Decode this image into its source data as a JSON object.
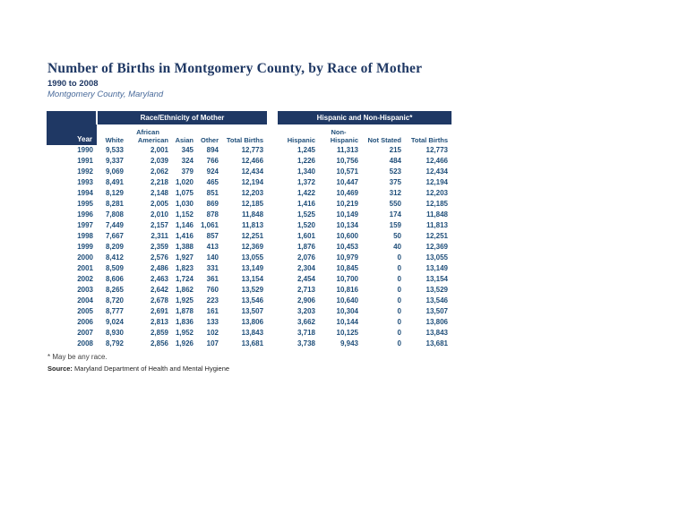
{
  "header": {
    "title": "Number of Births in Montgomery County, by Race of Mother",
    "subtitle": "1990 to 2008",
    "location": "Montgomery County, Maryland"
  },
  "colors": {
    "banner_bg": "#1F3864",
    "table_text": "#1F4E79",
    "title_text": "#1F3864",
    "location_text": "#4A6B9B"
  },
  "race_table": {
    "banner": "Race/Ethnicity of Mother",
    "year_header": "Year",
    "columns": [
      [
        "White"
      ],
      [
        "African",
        "American"
      ],
      [
        "Asian"
      ],
      [
        "Other"
      ],
      [
        "Total Births"
      ]
    ]
  },
  "hispanic_table": {
    "banner": "Hispanic and Non-Hispanic*",
    "columns": [
      [
        "Hispanic"
      ],
      [
        "Non-",
        "Hispanic"
      ],
      [
        "Not Stated"
      ],
      [
        "Total Births"
      ]
    ]
  },
  "row_fields": [
    "year",
    "white",
    "african_american",
    "asian",
    "other",
    "total_births",
    "hispanic",
    "non_hispanic",
    "not_stated",
    "total_births"
  ],
  "rows": [
    [
      "1990",
      "9,533",
      "2,001",
      "345",
      "894",
      "12,773",
      "1,245",
      "11,313",
      "215",
      "12,773"
    ],
    [
      "1991",
      "9,337",
      "2,039",
      "324",
      "766",
      "12,466",
      "1,226",
      "10,756",
      "484",
      "12,466"
    ],
    [
      "1992",
      "9,069",
      "2,062",
      "379",
      "924",
      "12,434",
      "1,340",
      "10,571",
      "523",
      "12,434"
    ],
    [
      "1993",
      "8,491",
      "2,218",
      "1,020",
      "465",
      "12,194",
      "1,372",
      "10,447",
      "375",
      "12,194"
    ],
    [
      "1994",
      "8,129",
      "2,148",
      "1,075",
      "851",
      "12,203",
      "1,422",
      "10,469",
      "312",
      "12,203"
    ],
    [
      "1995",
      "8,281",
      "2,005",
      "1,030",
      "869",
      "12,185",
      "1,416",
      "10,219",
      "550",
      "12,185"
    ],
    [
      "1996",
      "7,808",
      "2,010",
      "1,152",
      "878",
      "11,848",
      "1,525",
      "10,149",
      "174",
      "11,848"
    ],
    [
      "1997",
      "7,449",
      "2,157",
      "1,146",
      "1,061",
      "11,813",
      "1,520",
      "10,134",
      "159",
      "11,813"
    ],
    [
      "1998",
      "7,667",
      "2,311",
      "1,416",
      "857",
      "12,251",
      "1,601",
      "10,600",
      "50",
      "12,251"
    ],
    [
      "1999",
      "8,209",
      "2,359",
      "1,388",
      "413",
      "12,369",
      "1,876",
      "10,453",
      "40",
      "12,369"
    ],
    [
      "2000",
      "8,412",
      "2,576",
      "1,927",
      "140",
      "13,055",
      "2,076",
      "10,979",
      "0",
      "13,055"
    ],
    [
      "2001",
      "8,509",
      "2,486",
      "1,823",
      "331",
      "13,149",
      "2,304",
      "10,845",
      "0",
      "13,149"
    ],
    [
      "2002",
      "8,606",
      "2,463",
      "1,724",
      "361",
      "13,154",
      "2,454",
      "10,700",
      "0",
      "13,154"
    ],
    [
      "2003",
      "8,265",
      "2,642",
      "1,862",
      "760",
      "13,529",
      "2,713",
      "10,816",
      "0",
      "13,529"
    ],
    [
      "2004",
      "8,720",
      "2,678",
      "1,925",
      "223",
      "13,546",
      "2,906",
      "10,640",
      "0",
      "13,546"
    ],
    [
      "2005",
      "8,777",
      "2,691",
      "1,878",
      "161",
      "13,507",
      "3,203",
      "10,304",
      "0",
      "13,507"
    ],
    [
      "2006",
      "9,024",
      "2,813",
      "1,836",
      "133",
      "13,806",
      "3,662",
      "10,144",
      "0",
      "13,806"
    ],
    [
      "2007",
      "8,930",
      "2,859",
      "1,952",
      "102",
      "13,843",
      "3,718",
      "10,125",
      "0",
      "13,843"
    ],
    [
      "2008",
      "8,792",
      "2,856",
      "1,926",
      "107",
      "13,681",
      "3,738",
      "9,943",
      "0",
      "13,681"
    ]
  ],
  "footnotes": {
    "race_note": "* May be any race.",
    "source_label": "Source:",
    "source_text": "Maryland Department of Health and Mental Hygiene"
  }
}
